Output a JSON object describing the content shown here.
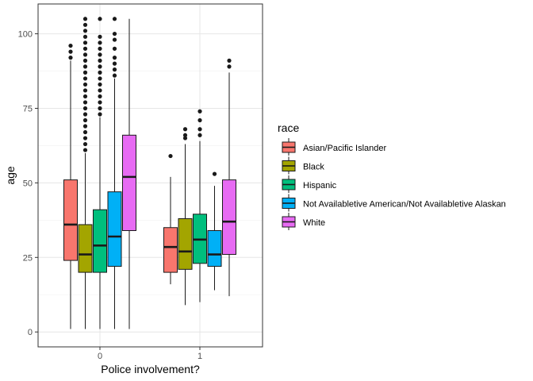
{
  "chart_data": {
    "type": "boxplot",
    "xlabel": "Police involvement?",
    "ylabel": "age",
    "ylim": [
      -5,
      110
    ],
    "y_ticks": [
      0,
      25,
      50,
      75,
      100
    ],
    "categories": [
      "0",
      "1"
    ],
    "legend": {
      "title": "race",
      "position": "right",
      "entries": [
        {
          "label": "Asian/Pacific Islander",
          "color": "#F8766D"
        },
        {
          "label": "Black",
          "color": "#A3A500"
        },
        {
          "label": "Hispanic",
          "color": "#00BF7D"
        },
        {
          "label": "Not Availabletive American/Not Availabletive Alaskan",
          "color": "#00B0F6"
        },
        {
          "label": "White",
          "color": "#E76BF3"
        }
      ]
    },
    "series": [
      {
        "name": "Asian/Pacific Islander",
        "color": "#F8766D",
        "boxes": [
          {
            "category": "0",
            "min": 1,
            "q1": 24,
            "median": 36,
            "q3": 51,
            "max": 91,
            "outliers": [
              92,
              94,
              96
            ]
          },
          {
            "category": "1",
            "min": 16,
            "q1": 20,
            "median": 28.5,
            "q3": 35,
            "max": 52,
            "outliers": [
              59
            ]
          }
        ]
      },
      {
        "name": "Black",
        "color": "#A3A500",
        "boxes": [
          {
            "category": "0",
            "min": 1,
            "q1": 20,
            "median": 26,
            "q3": 36,
            "max": 60,
            "outliers": [
              61,
              63,
              65,
              67,
              69,
              71,
              73,
              75,
              77,
              79,
              81,
              83,
              85,
              87,
              89,
              91,
              93,
              95,
              97,
              99,
              101,
              103,
              105
            ]
          },
          {
            "category": "1",
            "min": 9,
            "q1": 21,
            "median": 27,
            "q3": 38,
            "max": 63,
            "outliers": [
              65,
              66,
              68
            ]
          }
        ]
      },
      {
        "name": "Hispanic",
        "color": "#00BF7D",
        "boxes": [
          {
            "category": "0",
            "min": 1,
            "q1": 20,
            "median": 29,
            "q3": 41,
            "max": 72,
            "outliers": [
              73,
              75,
              77,
              79,
              81,
              83,
              85,
              87,
              89,
              91,
              93,
              95,
              97,
              99,
              105
            ]
          },
          {
            "category": "1",
            "min": 10,
            "q1": 23,
            "median": 31,
            "q3": 39.5,
            "max": 64,
            "outliers": [
              66,
              68,
              71,
              74
            ]
          }
        ]
      },
      {
        "name": "Not Availabletive American/Not Availabletive Alaskan",
        "color": "#00B0F6",
        "boxes": [
          {
            "category": "0",
            "min": 1,
            "q1": 22,
            "median": 32,
            "q3": 47,
            "max": 85,
            "outliers": [
              86,
              88,
              90,
              92,
              95,
              98,
              100,
              105
            ]
          },
          {
            "category": "1",
            "min": 14,
            "q1": 22,
            "median": 26,
            "q3": 34,
            "max": 49,
            "outliers": [
              53
            ]
          }
        ]
      },
      {
        "name": "White",
        "color": "#E76BF3",
        "boxes": [
          {
            "category": "0",
            "min": 1,
            "q1": 34,
            "median": 52,
            "q3": 66,
            "max": 105,
            "outliers": []
          },
          {
            "category": "1",
            "min": 12,
            "q1": 26,
            "median": 37,
            "q3": 51,
            "max": 87,
            "outliers": [
              89,
              91
            ]
          }
        ]
      }
    ]
  }
}
